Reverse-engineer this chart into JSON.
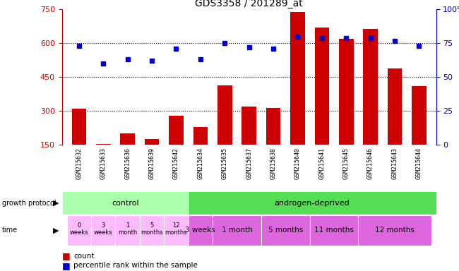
{
  "title": "GDS3358 / 201289_at",
  "samples": [
    "GSM215632",
    "GSM215633",
    "GSM215636",
    "GSM215639",
    "GSM215642",
    "GSM215634",
    "GSM215635",
    "GSM215637",
    "GSM215638",
    "GSM215640",
    "GSM215641",
    "GSM215645",
    "GSM215646",
    "GSM215643",
    "GSM215644"
  ],
  "counts": [
    310,
    155,
    200,
    175,
    280,
    230,
    415,
    320,
    315,
    740,
    670,
    620,
    665,
    490,
    410
  ],
  "percentiles": [
    73,
    60,
    63,
    62,
    71,
    63,
    75,
    72,
    71,
    80,
    79,
    79,
    79,
    77,
    73
  ],
  "bar_color": "#cc0000",
  "dot_color": "#0000cc",
  "ylim_left": [
    150,
    750
  ],
  "ylim_right": [
    0,
    100
  ],
  "yticks_left": [
    150,
    300,
    450,
    600,
    750
  ],
  "yticks_right": [
    0,
    25,
    50,
    75,
    100
  ],
  "grid_values": [
    300,
    450,
    600
  ],
  "ctrl_color": "#aaffaa",
  "androgen_color": "#55dd55",
  "time_ctrl_color": "#ffbbff",
  "time_and_color": "#dd66dd",
  "sample_bg_color": "#dddddd",
  "bar_width": 0.6
}
